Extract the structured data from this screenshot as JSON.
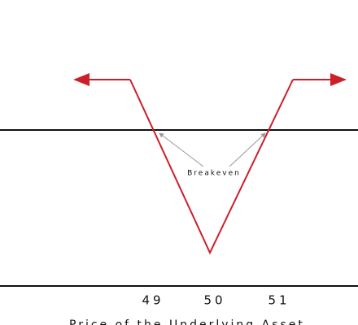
{
  "axis_labels": [
    "49",
    "50",
    "51"
  ],
  "annotation": "Breakeven",
  "x_axis_title": "Price of the Underlying Asset"
}
